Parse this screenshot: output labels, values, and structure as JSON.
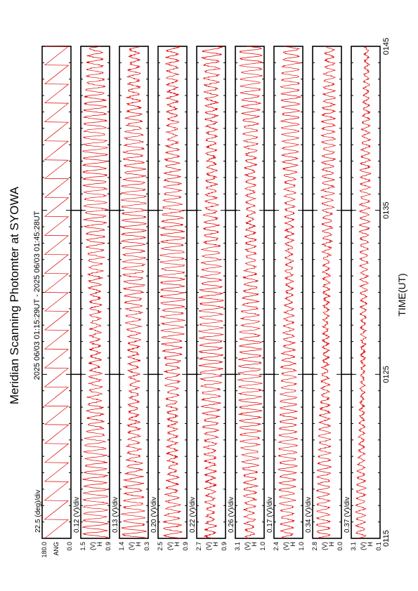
{
  "title": "Meridian Scanning Photomter at SYOWA",
  "time_range": "2025 06/03 01:15:29UT - 2025 06/03 01:45:28UT",
  "chart_data": {
    "type": "line",
    "orientation": "rotated-90",
    "xlabel": "TIME(UT)",
    "x_ticks": [
      "0115",
      "0125",
      "0135",
      "0145"
    ],
    "xlim": [
      "01:15",
      "01:45"
    ],
    "panels": [
      {
        "scale": "22.5 (deg)/div",
        "ylabels": [
          "180.0",
          "ANG",
          "0.0"
        ],
        "ylim": [
          0,
          180
        ],
        "cycles": 26,
        "amp": 0.92,
        "noise": 0.0,
        "trend": [
          0.0,
          0.0
        ]
      },
      {
        "scale": "0.12 (V)/div",
        "ylabels": [
          "1.5",
          "(V)",
          "H",
          "0.9"
        ],
        "ylim": [
          0.9,
          1.5
        ],
        "cycles": 72,
        "amp": 0.42,
        "noise": 0.08,
        "trend": [
          0.0,
          0.0
        ]
      },
      {
        "scale": "0.13 (V)/div",
        "ylabels": [
          "1.4",
          "(V)",
          "H",
          "0.3"
        ],
        "ylim": [
          0.3,
          1.4
        ],
        "cycles": 72,
        "amp": 0.42,
        "noise": 0.08,
        "trend": [
          0.0,
          0.0
        ]
      },
      {
        "scale": "0.20 (V)/div",
        "ylabels": [
          "2.5",
          "(V)",
          "H",
          "0.9"
        ],
        "ylim": [
          0.9,
          2.5
        ],
        "cycles": 72,
        "amp": 0.42,
        "noise": 0.08,
        "trend": [
          0.0,
          0.0
        ]
      },
      {
        "scale": "0.22 (V)/div",
        "ylabels": [
          "2.7",
          "(V)",
          "H",
          "0.9"
        ],
        "ylim": [
          0.9,
          2.7
        ],
        "cycles": 72,
        "amp": 0.4,
        "noise": 0.08,
        "trend": [
          -0.02,
          0.02
        ]
      },
      {
        "scale": "0.26 (V)/div",
        "ylabels": [
          "3.1",
          "(V)",
          "H",
          "1.0"
        ],
        "ylim": [
          1.0,
          3.1
        ],
        "cycles": 72,
        "amp": 0.38,
        "noise": 0.07,
        "trend": [
          0.0,
          0.05
        ]
      },
      {
        "scale": "0.17 (V)/div",
        "ylabels": [
          "2.4",
          "(V)",
          "H",
          "1.0"
        ],
        "ylim": [
          1.0,
          2.4
        ],
        "cycles": 72,
        "amp": 0.3,
        "noise": 0.06,
        "trend": [
          -0.05,
          0.1
        ]
      },
      {
        "scale": "0.34 (V)/div",
        "ylabels": [
          "2.8",
          "(V)",
          "H",
          "0.0"
        ],
        "ylim": [
          0.0,
          2.8
        ],
        "cycles": 72,
        "amp": 0.22,
        "noise": 0.06,
        "trend": [
          -0.15,
          0.1
        ]
      },
      {
        "scale": "0.37 (V)/div",
        "ylabels": [
          "3.1",
          "(V)",
          "H",
          "0.1"
        ],
        "ylim": [
          0.1,
          3.1
        ],
        "cycles": 72,
        "amp": 0.16,
        "noise": 0.05,
        "trend": [
          -0.2,
          0.05
        ]
      }
    ],
    "line_color": "#e00000",
    "axis_color": "#000000",
    "grid": false
  }
}
